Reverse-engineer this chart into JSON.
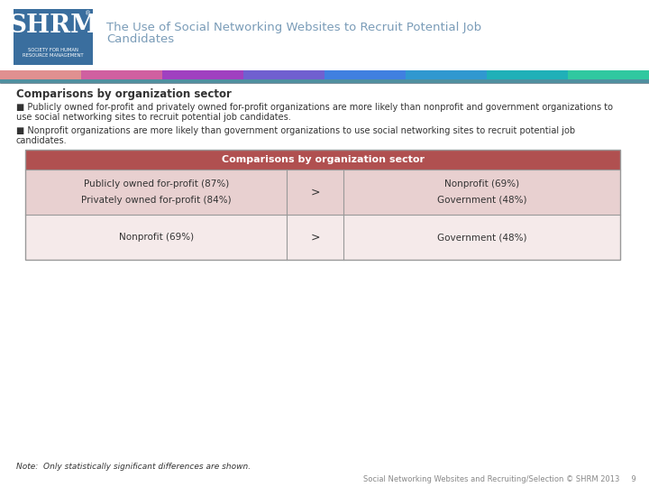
{
  "title_line1": "The Use of Social Networking Websites to Recruit Potential Job",
  "title_line2": "Candidates",
  "title_color": "#7a9cb8",
  "section_title": "Comparisons by organization sector",
  "bullet1_line1": "■ Publicly owned for-profit and privately owned for-profit organizations are more likely than nonprofit and government organizations to",
  "bullet1_line2": "use social networking sites to recruit potential job candidates.",
  "bullet2_line1": "■ Nonprofit organizations are more likely than government organizations to use social networking sites to recruit potential job",
  "bullet2_line2": "candidates.",
  "table_header": "Comparisons by organization sector",
  "table_header_bg": "#b05050",
  "table_header_text": "#ffffff",
  "row1_left_line1": "Publicly owned for-profit (87%)",
  "row1_left_line2": "Privately owned for-profit (84%)",
  "row1_mid": ">",
  "row1_right_line1": "Nonprofit (69%)",
  "row1_right_line2": "Government (48%)",
  "row2_left": "Nonprofit (69%)",
  "row2_mid": ">",
  "row2_right": "Government (48%)",
  "row_bg_dark": "#e8d0d0",
  "row_bg_light": "#f5eaea",
  "cell_border_color": "#c8a8a8",
  "text_color": "#333333",
  "note": "Note:  Only statistically significant differences are shown.",
  "footer": "Social Networking Websites and Recruiting/Selection © SHRM 2013     9",
  "footer_color": "#888888",
  "bg_color": "#ffffff",
  "stripe_colors": [
    "#e09090",
    "#d060a0",
    "#a040c0",
    "#7060d0",
    "#4080e0",
    "#3098d0",
    "#20b0b8",
    "#30c8a0"
  ],
  "logo_bg": "#3a6e9e",
  "logo_text": "SHRM",
  "logo_sub": "SOCIETY FOR HUMAN\nRESOURCE MANAGEMENT"
}
